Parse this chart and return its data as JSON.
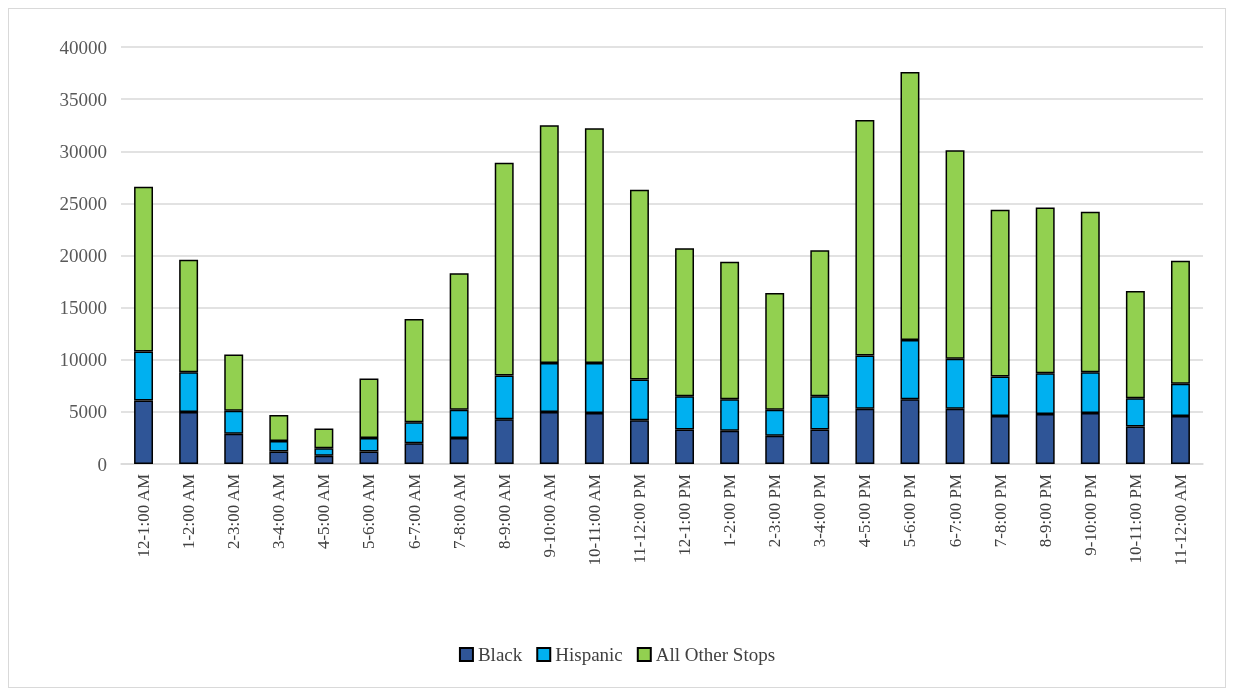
{
  "chart_data": {
    "type": "bar",
    "stacked": true,
    "categories": [
      "12-1:00 AM",
      "1-2:00 AM",
      "2-3:00 AM",
      "3-4:00 AM",
      "4-5:00 AM",
      "5-6:00 AM",
      "6-7:00 AM",
      "7-8:00 AM",
      "8-9:00 AM",
      "9-10:00 AM",
      "10-11:00 AM",
      "11-12:00 PM",
      "12-1:00 PM",
      "1-2:00 PM",
      "2-3:00 PM",
      "3-4:00 PM",
      "4-5:00 PM",
      "5-6:00 PM",
      "6-7:00 PM",
      "7-8:00 PM",
      "8-9:00 PM",
      "9-10:00 PM",
      "10-11:00 PM",
      "11-12:00 AM"
    ],
    "series": [
      {
        "name": "Black",
        "color": "#2f5597",
        "values": [
          6100,
          5000,
          2900,
          1200,
          800,
          1200,
          2000,
          2500,
          4300,
          5000,
          4900,
          4200,
          3300,
          3200,
          2700,
          3300,
          5300,
          6200,
          5300,
          4600,
          4800,
          4900,
          3600,
          4600
        ]
      },
      {
        "name": "Hispanic",
        "color": "#00b0f0",
        "values": [
          4700,
          3800,
          2200,
          1000,
          700,
          1300,
          2000,
          2700,
          4200,
          4700,
          4800,
          3900,
          3200,
          3000,
          2500,
          3200,
          5100,
          5700,
          4800,
          3800,
          3900,
          3900,
          2700,
          3100
        ]
      },
      {
        "name": "All Other Stops",
        "color": "#92d050",
        "values": [
          15800,
          10800,
          5400,
          2500,
          1900,
          5700,
          9900,
          13100,
          20400,
          22800,
          22500,
          18200,
          14200,
          13200,
          11200,
          14000,
          22600,
          25700,
          20000,
          16000,
          15900,
          15400,
          10300,
          11800
        ]
      }
    ],
    "ylim": [
      0,
      40000
    ],
    "yticks": [
      0,
      5000,
      10000,
      15000,
      20000,
      25000,
      30000,
      35000,
      40000
    ],
    "grid": "y",
    "legend": "bottom"
  }
}
